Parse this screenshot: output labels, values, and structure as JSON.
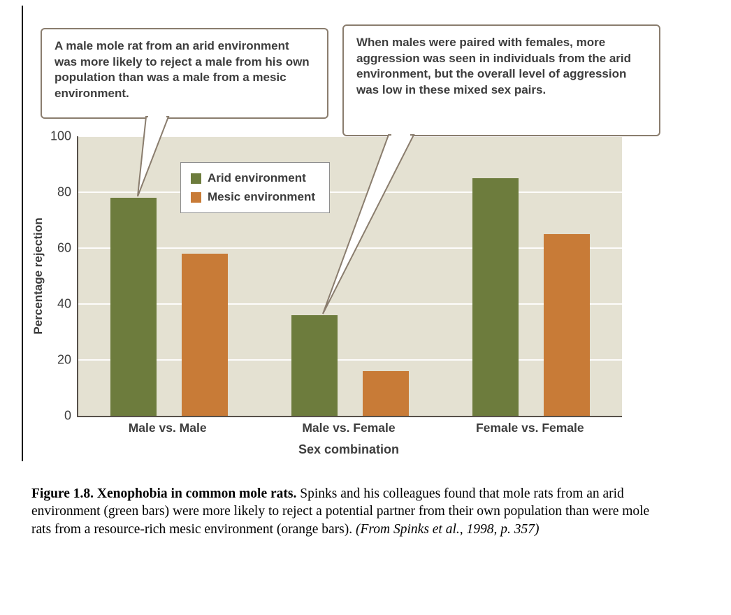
{
  "callouts": [
    {
      "text": "A male mole rat from an arid environment was more likely to reject a male from his own population than was a male from a mesic environment."
    },
    {
      "text": "When males were paired with females, more aggression was seen in individuals from the arid environment, but the overall level of aggression was low in these mixed sex pairs."
    }
  ],
  "chart_data": {
    "type": "bar",
    "title": "",
    "categories": [
      "Male vs. Male",
      "Male vs. Female",
      "Female vs. Female"
    ],
    "series": [
      {
        "name": "Arid environment",
        "color": "#6d7c3d",
        "values": [
          78,
          36,
          85
        ]
      },
      {
        "name": "Mesic environment",
        "color": "#c87b37",
        "values": [
          58,
          16,
          65
        ]
      }
    ],
    "xlabel": "Sex combination",
    "ylabel": "Percentage rejection",
    "ylim": [
      0,
      100
    ],
    "yticks": [
      0,
      20,
      40,
      60,
      80,
      100
    ],
    "grid": "horizontal-white",
    "legend_position": "upper-left-inside",
    "plot_background": "#e4e1d2"
  },
  "colors": {
    "arid_green": "#6d7c3d",
    "mesic_orange": "#c87b37",
    "plot_bg": "#e4e1d2",
    "callout_border": "#8a7d6e"
  },
  "caption": {
    "bold": "Figure 1.8. Xenophobia in common mole rats.",
    "text": "Spinks and his colleagues found that mole rats from an arid environment (green bars) were more likely to reject a potential partner from their own population than were mole rats from a resource-rich mesic environment (orange bars).",
    "italic": "(From Spinks et al., 1998, p. 357)"
  }
}
